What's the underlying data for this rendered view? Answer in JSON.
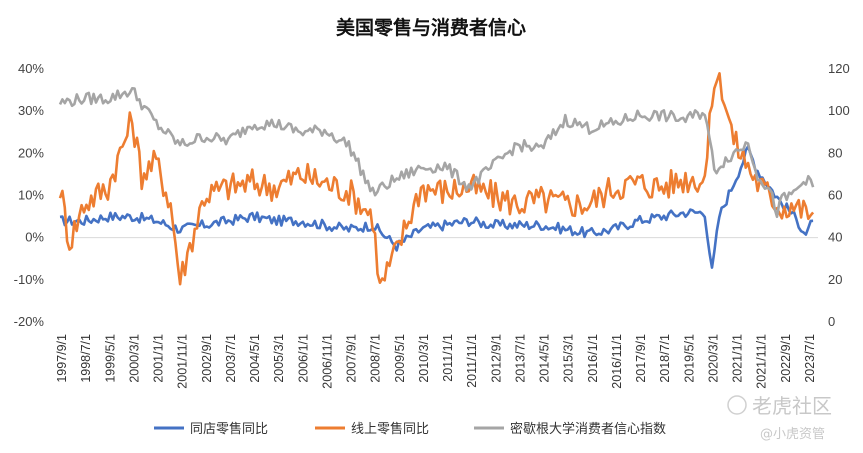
{
  "chart_data": {
    "type": "line",
    "title": "美国零售与消费者信心",
    "x_ticks": [
      "1997/9/1",
      "1998/7/1",
      "1999/5/1",
      "2000/3/1",
      "2001/1/1",
      "2001/11/1",
      "2002/9/1",
      "2003/7/1",
      "2004/5/1",
      "2005/3/1",
      "2006/1/1",
      "2006/11/1",
      "2007/9/1",
      "2008/7/1",
      "2009/5/1",
      "2010/3/1",
      "2011/1/1",
      "2011/11/1",
      "2012/9/1",
      "2013/7/1",
      "2014/5/1",
      "2015/3/1",
      "2016/1/1",
      "2016/11/1",
      "2017/9/1",
      "2018/7/1",
      "2019/5/1",
      "2020/3/1",
      "2021/1/1",
      "2021/11/1",
      "2022/9/1",
      "2023/7/1"
    ],
    "y_left": {
      "ticks": [
        "40%",
        "30%",
        "20%",
        "10%",
        "0%",
        "-10%",
        "-20%"
      ],
      "range": [
        -20,
        40
      ],
      "unit": "%"
    },
    "y_right": {
      "ticks": [
        "120",
        "100",
        "80",
        "60",
        "40",
        "20",
        "0"
      ],
      "range": [
        0,
        120
      ]
    },
    "series": [
      {
        "name": "同店零售同比",
        "axis": "left",
        "color": "#4472C4",
        "x": [
          1997.67,
          1998.5,
          1999.33,
          2000.17,
          2001.0,
          2001.83,
          2002.67,
          2003.5,
          2004.33,
          2005.17,
          2006.0,
          2006.83,
          2007.67,
          2008.5,
          2009.33,
          2010.17,
          2011.0,
          2011.83,
          2012.67,
          2013.5,
          2014.33,
          2015.17,
          2016.0,
          2016.83,
          2017.67,
          2018.5,
          2019.33,
          2020.0,
          2020.25,
          2020.5,
          2021.0,
          2021.5,
          2021.83,
          2022.25,
          2022.67,
          2023.0,
          2023.5,
          2023.75
        ],
        "values": [
          4,
          4,
          5,
          5,
          4,
          2,
          3,
          4,
          5,
          4,
          4,
          3,
          2,
          3,
          -2,
          2,
          3,
          4,
          3,
          3,
          3,
          2,
          1,
          2,
          4,
          5,
          6,
          6,
          -8,
          5,
          13,
          21,
          16,
          12,
          8,
          6,
          1,
          4
        ]
      },
      {
        "name": "线上零售同比",
        "axis": "left",
        "color": "#ED7D31",
        "x": [
          1997.67,
          1998.0,
          1998.5,
          1999.33,
          2000.17,
          2000.5,
          2001.0,
          2001.5,
          2001.83,
          2002.67,
          2003.5,
          2004.33,
          2005.17,
          2006.0,
          2006.83,
          2007.67,
          2008.5,
          2008.75,
          2009.33,
          2010.17,
          2011.0,
          2011.83,
          2012.67,
          2013.5,
          2014.33,
          2015.17,
          2016.0,
          2016.83,
          2017.67,
          2018.5,
          2019.33,
          2020.0,
          2020.33,
          2020.6,
          2021.0,
          2021.5,
          2021.83,
          2022.25,
          2022.67,
          2023.0,
          2023.5,
          2023.75
        ],
        "values": [
          12,
          -1,
          8,
          12,
          28,
          15,
          18,
          8,
          -10,
          10,
          12,
          13,
          12,
          15,
          13,
          11,
          5,
          -12,
          -3,
          12,
          11,
          12,
          10,
          8,
          9,
          8,
          8,
          12,
          13,
          12,
          14,
          14,
          38,
          36,
          23,
          17,
          13,
          10,
          7,
          8,
          6,
          6
        ]
      },
      {
        "name": "密歇根大学消费者信心指数",
        "axis": "right",
        "color": "#A5A5A5",
        "x": [
          1997.67,
          1998.5,
          1999.33,
          2000.17,
          2001.0,
          2001.83,
          2002.67,
          2003.5,
          2004.33,
          2005.17,
          2006.0,
          2006.83,
          2007.67,
          2008.5,
          2009.33,
          2010.17,
          2011.0,
          2011.83,
          2012.67,
          2013.5,
          2014.33,
          2015.17,
          2016.0,
          2016.83,
          2017.67,
          2018.5,
          2019.33,
          2020.0,
          2020.33,
          2020.8,
          2021.0,
          2021.5,
          2021.83,
          2022.25,
          2022.5,
          2022.67,
          2023.0,
          2023.5,
          2023.75
        ],
        "values": [
          104,
          106,
          106,
          110,
          94,
          84,
          88,
          86,
          94,
          94,
          90,
          91,
          84,
          61,
          68,
          73,
          74,
          64,
          74,
          84,
          82,
          96,
          92,
          94,
          98,
          98,
          96,
          100,
          72,
          78,
          80,
          85,
          70,
          62,
          52,
          58,
          60,
          68,
          64
        ]
      }
    ]
  },
  "legend": [
    "同店零售同比",
    "线上零售同比",
    "密歇根大学消费者信心指数"
  ],
  "watermark": {
    "brand": "老虎社区",
    "handle": "@小虎资管"
  }
}
